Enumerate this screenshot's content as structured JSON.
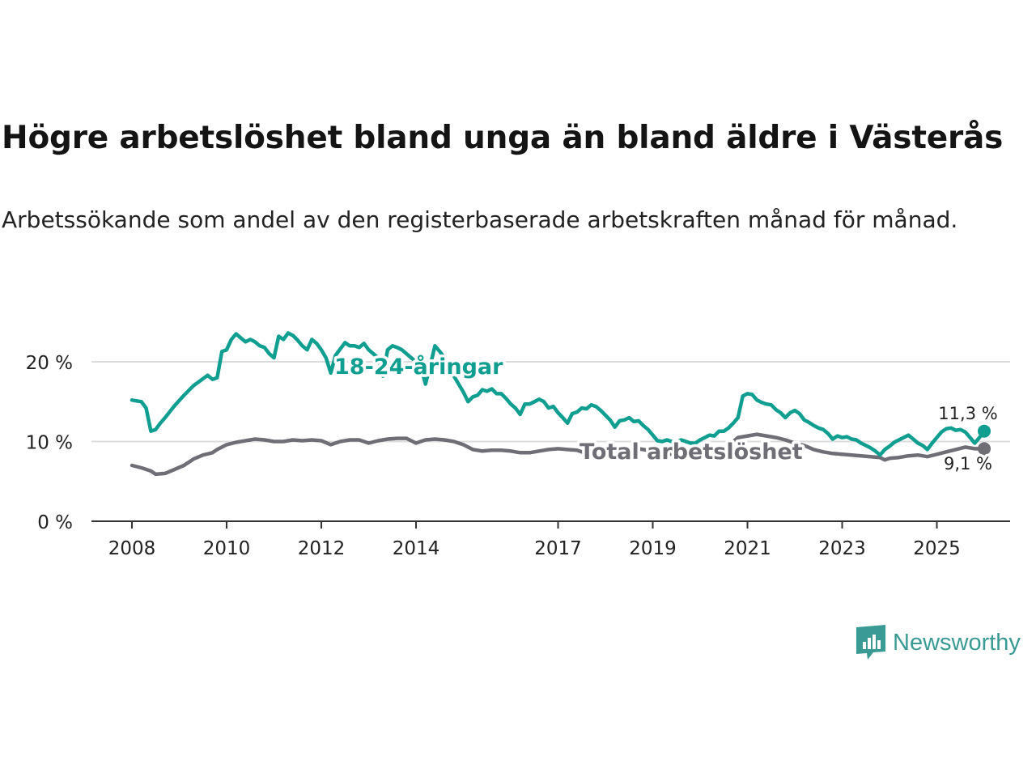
{
  "title": "Högre arbetslöshet bland unga än bland äldre i Västerås",
  "subtitle": "Arbetssökande som andel av den registerbaserade arbetskraften månad för månad.",
  "brand": {
    "name": "Newsworthy",
    "icon": "newsworthy-logo-icon"
  },
  "colors": {
    "youth": "#0f9e8f",
    "total": "#6f6e76",
    "grid": "#dcdcdc",
    "axis": "#333333",
    "text": "#222222"
  },
  "chart_data": {
    "type": "line",
    "title": "Högre arbetslöshet bland unga än bland äldre i Västerås",
    "xlabel": "",
    "ylabel": "",
    "xlim": [
      2007.7,
      2026.3
    ],
    "ylim": [
      0,
      20
    ],
    "yticks": [
      0,
      10,
      20
    ],
    "ytick_labels": [
      "0 %",
      "10 %",
      "20 %"
    ],
    "xticks": [
      2008,
      2010,
      2012,
      2014,
      2017,
      2019,
      2021,
      2023,
      2025
    ],
    "xtick_labels": [
      "2008",
      "2010",
      "2012",
      "2014",
      "2017",
      "2019",
      "2021",
      "2023",
      "2025"
    ],
    "grid": true,
    "series": [
      {
        "name": "18-24-åringar",
        "key": "youth",
        "end_label": "11,3 %",
        "points": [
          [
            2008.0,
            15.2
          ],
          [
            2008.2,
            15.0
          ],
          [
            2008.3,
            14.2
          ],
          [
            2008.4,
            11.3
          ],
          [
            2008.5,
            11.5
          ],
          [
            2008.6,
            12.3
          ],
          [
            2008.7,
            13.0
          ],
          [
            2008.9,
            14.5
          ],
          [
            2009.1,
            15.8
          ],
          [
            2009.3,
            17.0
          ],
          [
            2009.6,
            18.3
          ],
          [
            2009.7,
            17.8
          ],
          [
            2009.8,
            18.0
          ],
          [
            2009.9,
            21.3
          ],
          [
            2010.0,
            21.5
          ],
          [
            2010.1,
            22.8
          ],
          [
            2010.2,
            23.5
          ],
          [
            2010.3,
            23.0
          ],
          [
            2010.4,
            22.5
          ],
          [
            2010.5,
            22.8
          ],
          [
            2010.6,
            22.5
          ],
          [
            2010.7,
            22.0
          ],
          [
            2010.8,
            21.8
          ],
          [
            2010.9,
            21.0
          ],
          [
            2011.0,
            20.5
          ],
          [
            2011.1,
            23.2
          ],
          [
            2011.2,
            22.8
          ],
          [
            2011.3,
            23.6
          ],
          [
            2011.4,
            23.3
          ],
          [
            2011.5,
            22.7
          ],
          [
            2011.6,
            22.0
          ],
          [
            2011.7,
            21.5
          ],
          [
            2011.8,
            22.8
          ],
          [
            2011.9,
            22.3
          ],
          [
            2012.0,
            21.5
          ],
          [
            2012.1,
            20.5
          ],
          [
            2012.2,
            18.6
          ],
          [
            2012.3,
            20.8
          ],
          [
            2012.4,
            21.6
          ],
          [
            2012.5,
            22.4
          ],
          [
            2012.6,
            22.0
          ],
          [
            2012.7,
            22.0
          ],
          [
            2012.8,
            21.8
          ],
          [
            2012.9,
            22.3
          ],
          [
            2013.0,
            21.5
          ],
          [
            2013.1,
            21.0
          ],
          [
            2013.2,
            20.5
          ],
          [
            2013.3,
            18.2
          ],
          [
            2013.4,
            21.5
          ],
          [
            2013.5,
            22.0
          ],
          [
            2013.6,
            21.8
          ],
          [
            2013.7,
            21.5
          ],
          [
            2013.8,
            21.0
          ],
          [
            2013.9,
            20.5
          ],
          [
            2014.0,
            20.0
          ],
          [
            2014.1,
            19.5
          ],
          [
            2014.2,
            17.2
          ],
          [
            2014.3,
            19.5
          ],
          [
            2014.4,
            22.0
          ],
          [
            2014.5,
            21.3
          ],
          [
            2014.6,
            20.5
          ],
          [
            2014.7,
            19.0
          ],
          [
            2014.8,
            18.2
          ],
          [
            2014.9,
            17.2
          ],
          [
            2015.0,
            16.2
          ],
          [
            2015.1,
            15.0
          ],
          [
            2015.2,
            15.6
          ],
          [
            2015.3,
            15.8
          ],
          [
            2015.4,
            16.5
          ],
          [
            2015.5,
            16.3
          ],
          [
            2015.6,
            16.6
          ],
          [
            2015.7,
            16.0
          ],
          [
            2015.8,
            16.0
          ],
          [
            2015.9,
            15.4
          ],
          [
            2016.0,
            14.7
          ],
          [
            2016.1,
            14.2
          ],
          [
            2016.2,
            13.4
          ],
          [
            2016.3,
            14.7
          ],
          [
            2016.4,
            14.7
          ],
          [
            2016.5,
            15.0
          ],
          [
            2016.6,
            15.3
          ],
          [
            2016.7,
            15.0
          ],
          [
            2016.8,
            14.2
          ],
          [
            2016.9,
            14.4
          ],
          [
            2017.0,
            13.6
          ],
          [
            2017.1,
            13.0
          ],
          [
            2017.2,
            12.3
          ],
          [
            2017.3,
            13.5
          ],
          [
            2017.4,
            13.7
          ],
          [
            2017.5,
            14.2
          ],
          [
            2017.6,
            14.1
          ],
          [
            2017.7,
            14.6
          ],
          [
            2017.8,
            14.4
          ],
          [
            2017.9,
            13.9
          ],
          [
            2018.0,
            13.3
          ],
          [
            2018.1,
            12.7
          ],
          [
            2018.2,
            11.8
          ],
          [
            2018.3,
            12.6
          ],
          [
            2018.4,
            12.7
          ],
          [
            2018.5,
            13.0
          ],
          [
            2018.6,
            12.5
          ],
          [
            2018.7,
            12.6
          ],
          [
            2018.8,
            12.0
          ],
          [
            2018.9,
            11.5
          ],
          [
            2019.0,
            10.8
          ],
          [
            2019.1,
            10.1
          ],
          [
            2019.2,
            10.0
          ],
          [
            2019.3,
            10.2
          ],
          [
            2019.4,
            10.0
          ],
          [
            2019.5,
            9.9
          ],
          [
            2019.6,
            10.2
          ],
          [
            2019.7,
            10.0
          ],
          [
            2019.8,
            9.8
          ],
          [
            2019.9,
            9.8
          ],
          [
            2020.0,
            10.2
          ],
          [
            2020.1,
            10.5
          ],
          [
            2020.2,
            10.8
          ],
          [
            2020.3,
            10.7
          ],
          [
            2020.4,
            11.3
          ],
          [
            2020.5,
            11.3
          ],
          [
            2020.6,
            11.7
          ],
          [
            2020.7,
            12.3
          ],
          [
            2020.8,
            13.0
          ],
          [
            2020.9,
            15.7
          ],
          [
            2021.0,
            16.0
          ],
          [
            2021.1,
            15.9
          ],
          [
            2021.2,
            15.2
          ],
          [
            2021.3,
            14.9
          ],
          [
            2021.4,
            14.7
          ],
          [
            2021.5,
            14.6
          ],
          [
            2021.6,
            14.0
          ],
          [
            2021.7,
            13.6
          ],
          [
            2021.8,
            13.0
          ],
          [
            2021.9,
            13.6
          ],
          [
            2022.0,
            13.9
          ],
          [
            2022.1,
            13.5
          ],
          [
            2022.2,
            12.7
          ],
          [
            2022.3,
            12.4
          ],
          [
            2022.4,
            12.0
          ],
          [
            2022.5,
            11.7
          ],
          [
            2022.6,
            11.5
          ],
          [
            2022.7,
            11.0
          ],
          [
            2022.8,
            10.3
          ],
          [
            2022.9,
            10.7
          ],
          [
            2023.0,
            10.5
          ],
          [
            2023.1,
            10.6
          ],
          [
            2023.2,
            10.3
          ],
          [
            2023.3,
            10.2
          ],
          [
            2023.4,
            9.8
          ],
          [
            2023.5,
            9.5
          ],
          [
            2023.6,
            9.2
          ],
          [
            2023.7,
            8.8
          ],
          [
            2023.8,
            8.3
          ],
          [
            2023.9,
            9.0
          ],
          [
            2024.0,
            9.4
          ],
          [
            2024.1,
            9.9
          ],
          [
            2024.2,
            10.2
          ],
          [
            2024.3,
            10.5
          ],
          [
            2024.4,
            10.8
          ],
          [
            2024.5,
            10.3
          ],
          [
            2024.6,
            9.8
          ],
          [
            2024.7,
            9.5
          ],
          [
            2024.8,
            9.0
          ],
          [
            2024.9,
            9.8
          ],
          [
            2025.0,
            10.5
          ],
          [
            2025.1,
            11.2
          ],
          [
            2025.2,
            11.6
          ],
          [
            2025.3,
            11.7
          ],
          [
            2025.4,
            11.4
          ],
          [
            2025.5,
            11.5
          ],
          [
            2025.6,
            11.2
          ],
          [
            2025.7,
            10.5
          ],
          [
            2025.8,
            9.8
          ],
          [
            2025.9,
            10.5
          ],
          [
            2026.0,
            11.3
          ]
        ]
      },
      {
        "name": "Total arbetslöshet",
        "key": "total",
        "end_label": "9,1 %",
        "points": [
          [
            2008.0,
            7.0
          ],
          [
            2008.2,
            6.7
          ],
          [
            2008.4,
            6.3
          ],
          [
            2008.5,
            5.9
          ],
          [
            2008.7,
            6.0
          ],
          [
            2008.9,
            6.5
          ],
          [
            2009.1,
            7.0
          ],
          [
            2009.3,
            7.8
          ],
          [
            2009.5,
            8.3
          ],
          [
            2009.7,
            8.6
          ],
          [
            2009.8,
            9.0
          ],
          [
            2010.0,
            9.6
          ],
          [
            2010.2,
            9.9
          ],
          [
            2010.4,
            10.1
          ],
          [
            2010.6,
            10.3
          ],
          [
            2010.8,
            10.2
          ],
          [
            2011.0,
            10.0
          ],
          [
            2011.2,
            10.0
          ],
          [
            2011.4,
            10.2
          ],
          [
            2011.6,
            10.1
          ],
          [
            2011.8,
            10.2
          ],
          [
            2012.0,
            10.1
          ],
          [
            2012.2,
            9.6
          ],
          [
            2012.4,
            10.0
          ],
          [
            2012.6,
            10.2
          ],
          [
            2012.8,
            10.2
          ],
          [
            2013.0,
            9.8
          ],
          [
            2013.2,
            10.1
          ],
          [
            2013.4,
            10.3
          ],
          [
            2013.6,
            10.4
          ],
          [
            2013.8,
            10.4
          ],
          [
            2014.0,
            9.8
          ],
          [
            2014.2,
            10.2
          ],
          [
            2014.4,
            10.3
          ],
          [
            2014.6,
            10.2
          ],
          [
            2014.8,
            10.0
          ],
          [
            2015.0,
            9.6
          ],
          [
            2015.2,
            9.0
          ],
          [
            2015.4,
            8.8
          ],
          [
            2015.6,
            8.9
          ],
          [
            2015.8,
            8.9
          ],
          [
            2016.0,
            8.8
          ],
          [
            2016.2,
            8.6
          ],
          [
            2016.4,
            8.6
          ],
          [
            2016.6,
            8.8
          ],
          [
            2016.8,
            9.0
          ],
          [
            2017.0,
            9.1
          ],
          [
            2017.2,
            9.0
          ],
          [
            2017.4,
            8.9
          ],
          [
            2017.6,
            8.5
          ],
          [
            2017.8,
            8.6
          ],
          [
            2018.0,
            8.8
          ],
          [
            2018.2,
            9.0
          ],
          [
            2018.4,
            9.1
          ],
          [
            2018.6,
            9.2
          ],
          [
            2018.8,
            9.0
          ],
          [
            2019.0,
            8.8
          ],
          [
            2019.2,
            8.5
          ],
          [
            2019.4,
            8.4
          ],
          [
            2019.6,
            8.2
          ],
          [
            2019.8,
            8.0
          ],
          [
            2020.0,
            8.0
          ],
          [
            2020.2,
            8.3
          ],
          [
            2020.4,
            9.0
          ],
          [
            2020.6,
            9.5
          ],
          [
            2020.8,
            10.5
          ],
          [
            2021.0,
            10.7
          ],
          [
            2021.2,
            10.9
          ],
          [
            2021.4,
            10.7
          ],
          [
            2021.6,
            10.5
          ],
          [
            2021.8,
            10.2
          ],
          [
            2022.0,
            9.8
          ],
          [
            2022.2,
            9.5
          ],
          [
            2022.4,
            9.0
          ],
          [
            2022.6,
            8.7
          ],
          [
            2022.8,
            8.5
          ],
          [
            2023.0,
            8.4
          ],
          [
            2023.2,
            8.3
          ],
          [
            2023.4,
            8.2
          ],
          [
            2023.6,
            8.1
          ],
          [
            2023.8,
            8.0
          ],
          [
            2023.9,
            7.7
          ],
          [
            2024.0,
            7.9
          ],
          [
            2024.2,
            8.0
          ],
          [
            2024.4,
            8.2
          ],
          [
            2024.6,
            8.3
          ],
          [
            2024.8,
            8.1
          ],
          [
            2025.0,
            8.4
          ],
          [
            2025.2,
            8.7
          ],
          [
            2025.4,
            9.0
          ],
          [
            2025.6,
            9.3
          ],
          [
            2025.8,
            9.1
          ],
          [
            2026.0,
            9.1
          ]
        ]
      }
    ]
  }
}
